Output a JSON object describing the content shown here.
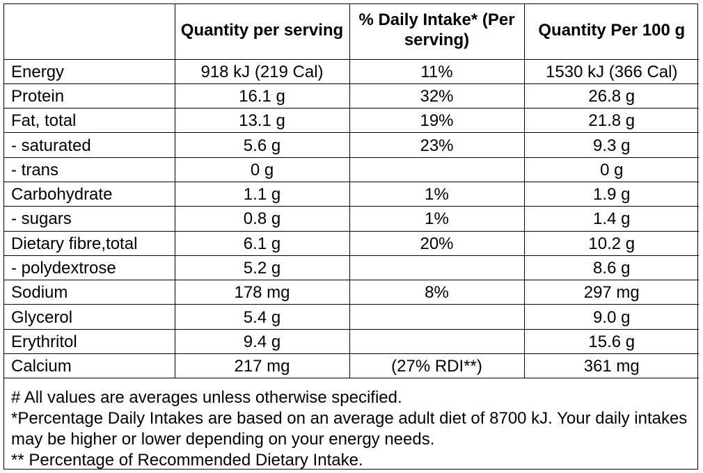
{
  "table": {
    "headers": [
      "",
      "Quantity per serving",
      "% Daily Intake* (Per serving)",
      "Quantity Per 100 g"
    ],
    "rows": [
      {
        "nutrient": "Energy",
        "per_serving": "918 kJ (219 Cal)",
        "daily_intake": "11%",
        "per_100g": "1530 kJ (366 Cal)"
      },
      {
        "nutrient": "Protein",
        "per_serving": "16.1 g",
        "daily_intake": "32%",
        "per_100g": "26.8 g"
      },
      {
        "nutrient": "Fat, total",
        "per_serving": "13.1 g",
        "daily_intake": "19%",
        "per_100g": "21.8 g"
      },
      {
        "nutrient": "- saturated",
        "per_serving": "5.6 g",
        "daily_intake": "23%",
        "per_100g": "9.3 g"
      },
      {
        "nutrient": "- trans",
        "per_serving": "0 g",
        "daily_intake": "",
        "per_100g": "0 g"
      },
      {
        "nutrient": "Carbohydrate",
        "per_serving": "1.1 g",
        "daily_intake": "1%",
        "per_100g": "1.9 g"
      },
      {
        "nutrient": "- sugars",
        "per_serving": "0.8 g",
        "daily_intake": "1%",
        "per_100g": "1.4 g"
      },
      {
        "nutrient": "Dietary fibre,total",
        "per_serving": "6.1 g",
        "daily_intake": "20%",
        "per_100g": "10.2 g"
      },
      {
        "nutrient": "- polydextrose",
        "per_serving": "5.2 g",
        "daily_intake": "",
        "per_100g": "8.6 g"
      },
      {
        "nutrient": "Sodium",
        "per_serving": "178 mg",
        "daily_intake": "8%",
        "per_100g": "297 mg"
      },
      {
        "nutrient": "Glycerol",
        "per_serving": "5.4 g",
        "daily_intake": "",
        "per_100g": "9.0 g"
      },
      {
        "nutrient": "Erythritol",
        "per_serving": "9.4 g",
        "daily_intake": "",
        "per_100g": "15.6 g"
      },
      {
        "nutrient": "Calcium",
        "per_serving": "217 mg",
        "daily_intake": "(27% RDI**)",
        "per_100g": "361 mg"
      }
    ]
  },
  "footnotes": [
    "# All values are averages unless otherwise specified.",
    "*Percentage Daily Intakes are based on an average adult diet of 8700 kJ. Your daily intakes may be higher or lower depending on your energy needs.",
    "** Percentage of Recommended Dietary Intake."
  ]
}
